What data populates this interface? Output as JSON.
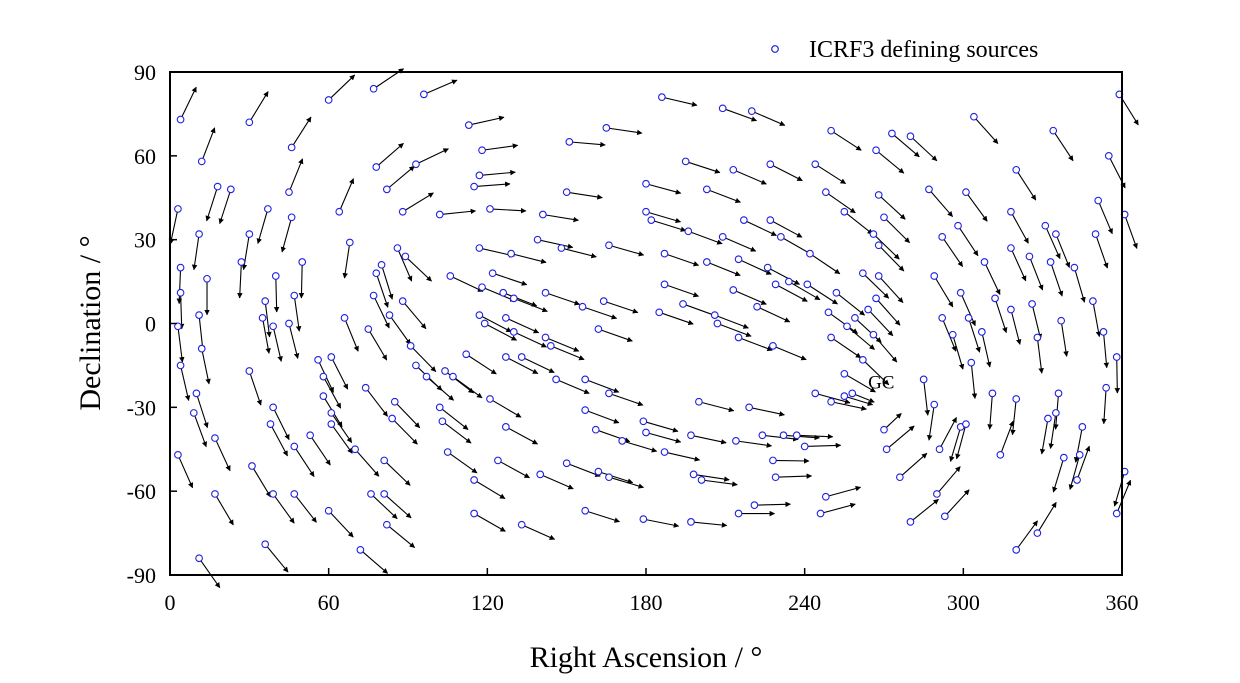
{
  "chart_data": {
    "type": "scatter",
    "xlabel": "Right Ascension / °",
    "ylabel": "Declination / °",
    "xlim": [
      0,
      360
    ],
    "ylim": [
      -90,
      90
    ],
    "xticks": [
      0,
      60,
      120,
      180,
      240,
      300,
      360
    ],
    "yticks": [
      -90,
      -60,
      -30,
      0,
      30,
      60,
      90
    ],
    "grid": false,
    "legend_position": "top-right",
    "series": [
      {
        "name": "ICRF3 defining sources",
        "marker": "open-circle",
        "color": "#2020e0",
        "vector_field": {
          "description": "arrow at each source showing proper-motion direction",
          "convergence_point": [
            267,
            -29
          ],
          "divergence_point": [
            87,
            29
          ]
        },
        "points": [
          {
            "x": 77,
            "y": 84
          },
          {
            "x": 60,
            "y": 80
          },
          {
            "x": 96,
            "y": 82
          },
          {
            "x": 4,
            "y": 73
          },
          {
            "x": 30,
            "y": 72
          },
          {
            "x": 46,
            "y": 63
          },
          {
            "x": 113,
            "y": 71
          },
          {
            "x": 12,
            "y": 58
          },
          {
            "x": 18,
            "y": 49
          },
          {
            "x": 23,
            "y": 48
          },
          {
            "x": 45,
            "y": 47
          },
          {
            "x": 78,
            "y": 56
          },
          {
            "x": 82,
            "y": 48
          },
          {
            "x": 3,
            "y": 41
          },
          {
            "x": 37,
            "y": 41
          },
          {
            "x": 46,
            "y": 38
          },
          {
            "x": 64,
            "y": 40
          },
          {
            "x": 88,
            "y": 40
          },
          {
            "x": 102,
            "y": 39
          },
          {
            "x": 93,
            "y": 57
          },
          {
            "x": 11,
            "y": 32
          },
          {
            "x": 30,
            "y": 32
          },
          {
            "x": 68,
            "y": 29
          },
          {
            "x": 86,
            "y": 27
          },
          {
            "x": 89,
            "y": 24
          },
          {
            "x": 4,
            "y": 20
          },
          {
            "x": 14,
            "y": 16
          },
          {
            "x": 27,
            "y": 22
          },
          {
            "x": 40,
            "y": 17
          },
          {
            "x": 50,
            "y": 22
          },
          {
            "x": 78,
            "y": 18
          },
          {
            "x": 80,
            "y": 21
          },
          {
            "x": 4,
            "y": 11
          },
          {
            "x": 36,
            "y": 8
          },
          {
            "x": 47,
            "y": 10
          },
          {
            "x": 77,
            "y": 10
          },
          {
            "x": 88,
            "y": 8
          },
          {
            "x": 106,
            "y": 17
          },
          {
            "x": 11,
            "y": 3
          },
          {
            "x": 35,
            "y": 2
          },
          {
            "x": 39,
            "y": -1
          },
          {
            "x": 45,
            "y": 0
          },
          {
            "x": 66,
            "y": 2
          },
          {
            "x": 83,
            "y": 3
          },
          {
            "x": 3,
            "y": -1
          },
          {
            "x": 12,
            "y": -9
          },
          {
            "x": 4,
            "y": -15
          },
          {
            "x": 30,
            "y": -17
          },
          {
            "x": 56,
            "y": -13
          },
          {
            "x": 61,
            "y": -12
          },
          {
            "x": 75,
            "y": -2
          },
          {
            "x": 91,
            "y": -8
          },
          {
            "x": 93,
            "y": -15
          },
          {
            "x": 58,
            "y": -19
          },
          {
            "x": 10,
            "y": -25
          },
          {
            "x": 9,
            "y": -32
          },
          {
            "x": 39,
            "y": -30
          },
          {
            "x": 58,
            "y": -26
          },
          {
            "x": 61,
            "y": -32
          },
          {
            "x": 74,
            "y": -23
          },
          {
            "x": 85,
            "y": -28
          },
          {
            "x": 97,
            "y": -19
          },
          {
            "x": 102,
            "y": -30
          },
          {
            "x": 104,
            "y": -17
          },
          {
            "x": 107,
            "y": -19
          },
          {
            "x": 38,
            "y": -36
          },
          {
            "x": 53,
            "y": -40
          },
          {
            "x": 61,
            "y": -36
          },
          {
            "x": 84,
            "y": -34
          },
          {
            "x": 103,
            "y": -35
          },
          {
            "x": 17,
            "y": -41
          },
          {
            "x": 3,
            "y": -47
          },
          {
            "x": 47,
            "y": -44
          },
          {
            "x": 70,
            "y": -45
          },
          {
            "x": 81,
            "y": -49
          },
          {
            "x": 105,
            "y": -46
          },
          {
            "x": 31,
            "y": -51
          },
          {
            "x": 39,
            "y": -61
          },
          {
            "x": 47,
            "y": -61
          },
          {
            "x": 76,
            "y": -61
          },
          {
            "x": 81,
            "y": -61
          },
          {
            "x": 17,
            "y": -61
          },
          {
            "x": 60,
            "y": -67
          },
          {
            "x": 82,
            "y": -72
          },
          {
            "x": 36,
            "y": -79
          },
          {
            "x": 72,
            "y": -81
          },
          {
            "x": 11,
            "y": -84
          },
          {
            "x": 115,
            "y": -56
          },
          {
            "x": 115,
            "y": -68
          },
          {
            "x": 124,
            "y": -49
          },
          {
            "x": 121,
            "y": -27
          },
          {
            "x": 127,
            "y": -37
          },
          {
            "x": 133,
            "y": -72
          },
          {
            "x": 140,
            "y": -54
          },
          {
            "x": 150,
            "y": -50
          },
          {
            "x": 157,
            "y": -67
          },
          {
            "x": 118,
            "y": 62
          },
          {
            "x": 117,
            "y": 53
          },
          {
            "x": 115,
            "y": 49
          },
          {
            "x": 121,
            "y": 41
          },
          {
            "x": 151,
            "y": 65
          },
          {
            "x": 165,
            "y": 70
          },
          {
            "x": 141,
            "y": 39
          },
          {
            "x": 150,
            "y": 47
          },
          {
            "x": 117,
            "y": 27
          },
          {
            "x": 139,
            "y": 30
          },
          {
            "x": 148,
            "y": 27
          },
          {
            "x": 129,
            "y": 25
          },
          {
            "x": 122,
            "y": 18
          },
          {
            "x": 118,
            "y": 13
          },
          {
            "x": 126,
            "y": 11
          },
          {
            "x": 130,
            "y": 9
          },
          {
            "x": 142,
            "y": 11
          },
          {
            "x": 156,
            "y": 6
          },
          {
            "x": 164,
            "y": 8
          },
          {
            "x": 166,
            "y": 28
          },
          {
            "x": 117,
            "y": 3
          },
          {
            "x": 119,
            "y": 0
          },
          {
            "x": 127,
            "y": 2
          },
          {
            "x": 130,
            "y": -3
          },
          {
            "x": 142,
            "y": -5
          },
          {
            "x": 144,
            "y": -8
          },
          {
            "x": 162,
            "y": -2
          },
          {
            "x": 112,
            "y": -11
          },
          {
            "x": 127,
            "y": -12
          },
          {
            "x": 133,
            "y": -12
          },
          {
            "x": 146,
            "y": -20
          },
          {
            "x": 157,
            "y": -20
          },
          {
            "x": 157,
            "y": -31
          },
          {
            "x": 161,
            "y": -38
          },
          {
            "x": 166,
            "y": -25
          },
          {
            "x": 171,
            "y": -42
          },
          {
            "x": 179,
            "y": -35
          },
          {
            "x": 180,
            "y": -39
          },
          {
            "x": 162,
            "y": -53
          },
          {
            "x": 166,
            "y": -55
          },
          {
            "x": 179,
            "y": -70
          },
          {
            "x": 197,
            "y": -71
          },
          {
            "x": 187,
            "y": -46
          },
          {
            "x": 198,
            "y": -54
          },
          {
            "x": 201,
            "y": -56
          },
          {
            "x": 197,
            "y": -40
          },
          {
            "x": 215,
            "y": -68
          },
          {
            "x": 221,
            "y": -65
          },
          {
            "x": 214,
            "y": -42
          },
          {
            "x": 224,
            "y": -40
          },
          {
            "x": 200,
            "y": -28
          },
          {
            "x": 219,
            "y": -30
          },
          {
            "x": 228,
            "y": -49
          },
          {
            "x": 229,
            "y": -55
          },
          {
            "x": 186,
            "y": 81
          },
          {
            "x": 209,
            "y": 77
          },
          {
            "x": 220,
            "y": 76
          },
          {
            "x": 195,
            "y": 58
          },
          {
            "x": 213,
            "y": 55
          },
          {
            "x": 227,
            "y": 57
          },
          {
            "x": 180,
            "y": 50
          },
          {
            "x": 180,
            "y": 40
          },
          {
            "x": 203,
            "y": 48
          },
          {
            "x": 217,
            "y": 37
          },
          {
            "x": 182,
            "y": 37
          },
          {
            "x": 196,
            "y": 33
          },
          {
            "x": 209,
            "y": 31
          },
          {
            "x": 227,
            "y": 37
          },
          {
            "x": 231,
            "y": 31
          },
          {
            "x": 244,
            "y": 57
          },
          {
            "x": 250,
            "y": 69
          },
          {
            "x": 248,
            "y": 47
          },
          {
            "x": 255,
            "y": 40
          },
          {
            "x": 187,
            "y": 25
          },
          {
            "x": 203,
            "y": 22
          },
          {
            "x": 215,
            "y": 23
          },
          {
            "x": 226,
            "y": 20
          },
          {
            "x": 234,
            "y": 15
          },
          {
            "x": 242,
            "y": 25
          },
          {
            "x": 187,
            "y": 14
          },
          {
            "x": 194,
            "y": 7
          },
          {
            "x": 206,
            "y": 3
          },
          {
            "x": 213,
            "y": 12
          },
          {
            "x": 222,
            "y": 6
          },
          {
            "x": 229,
            "y": 14
          },
          {
            "x": 241,
            "y": 14
          },
          {
            "x": 249,
            "y": 4
          },
          {
            "x": 185,
            "y": 4
          },
          {
            "x": 207,
            "y": 0
          },
          {
            "x": 215,
            "y": -5
          },
          {
            "x": 228,
            "y": -8
          },
          {
            "x": 250,
            "y": -5
          },
          {
            "x": 262,
            "y": 18
          },
          {
            "x": 266,
            "y": 32
          },
          {
            "x": 267,
            "y": 62
          },
          {
            "x": 273,
            "y": 68
          },
          {
            "x": 280,
            "y": 67
          },
          {
            "x": 268,
            "y": 46
          },
          {
            "x": 270,
            "y": 38
          },
          {
            "x": 268,
            "y": 28
          },
          {
            "x": 268,
            "y": 17
          },
          {
            "x": 267,
            "y": 9
          },
          {
            "x": 264,
            "y": 5
          },
          {
            "x": 259,
            "y": 2
          },
          {
            "x": 252,
            "y": 11
          },
          {
            "x": 256,
            "y": -1
          },
          {
            "x": 266,
            "y": -4
          },
          {
            "x": 262,
            "y": -13
          },
          {
            "x": 255,
            "y": -18
          },
          {
            "x": 255,
            "y": -26
          },
          {
            "x": 244,
            "y": -25
          },
          {
            "x": 250,
            "y": -28
          },
          {
            "x": 258,
            "y": -25
          },
          {
            "x": 270,
            "y": -38
          },
          {
            "x": 276,
            "y": -55
          },
          {
            "x": 280,
            "y": -71
          },
          {
            "x": 271,
            "y": -45
          },
          {
            "x": 246,
            "y": -68
          },
          {
            "x": 248,
            "y": -62
          },
          {
            "x": 240,
            "y": -44
          },
          {
            "x": 232,
            "y": -40
          },
          {
            "x": 237,
            "y": -40
          },
          {
            "x": 304,
            "y": 74
          },
          {
            "x": 334,
            "y": 69
          },
          {
            "x": 359,
            "y": 82
          },
          {
            "x": 287,
            "y": 48
          },
          {
            "x": 301,
            "y": 47
          },
          {
            "x": 320,
            "y": 55
          },
          {
            "x": 355,
            "y": 60
          },
          {
            "x": 361,
            "y": 39
          },
          {
            "x": 351,
            "y": 44
          },
          {
            "x": 318,
            "y": 40
          },
          {
            "x": 292,
            "y": 31
          },
          {
            "x": 298,
            "y": 35
          },
          {
            "x": 308,
            "y": 22
          },
          {
            "x": 331,
            "y": 35
          },
          {
            "x": 335,
            "y": 32
          },
          {
            "x": 350,
            "y": 32
          },
          {
            "x": 289,
            "y": 17
          },
          {
            "x": 299,
            "y": 11
          },
          {
            "x": 318,
            "y": 27
          },
          {
            "x": 325,
            "y": 24
          },
          {
            "x": 333,
            "y": 22
          },
          {
            "x": 342,
            "y": 20
          },
          {
            "x": 292,
            "y": 2
          },
          {
            "x": 302,
            "y": 2
          },
          {
            "x": 312,
            "y": 9
          },
          {
            "x": 318,
            "y": 5
          },
          {
            "x": 326,
            "y": 7
          },
          {
            "x": 337,
            "y": 1
          },
          {
            "x": 349,
            "y": 8
          },
          {
            "x": 296,
            "y": -4
          },
          {
            "x": 307,
            "y": -3
          },
          {
            "x": 328,
            "y": -5
          },
          {
            "x": 353,
            "y": -3
          },
          {
            "x": 358,
            "y": -12
          },
          {
            "x": 285,
            "y": -20
          },
          {
            "x": 303,
            "y": -14
          },
          {
            "x": 311,
            "y": -25
          },
          {
            "x": 320,
            "y": -27
          },
          {
            "x": 336,
            "y": -25
          },
          {
            "x": 354,
            "y": -23
          },
          {
            "x": 289,
            "y": -29
          },
          {
            "x": 299,
            "y": -37
          },
          {
            "x": 301,
            "y": -36
          },
          {
            "x": 314,
            "y": -47
          },
          {
            "x": 332,
            "y": -34
          },
          {
            "x": 335,
            "y": -32
          },
          {
            "x": 345,
            "y": -37
          },
          {
            "x": 344,
            "y": -47
          },
          {
            "x": 338,
            "y": -48
          },
          {
            "x": 343,
            "y": -56
          },
          {
            "x": 361,
            "y": -53
          },
          {
            "x": 291,
            "y": -45
          },
          {
            "x": 290,
            "y": -61
          },
          {
            "x": 293,
            "y": -69
          },
          {
            "x": 320,
            "y": -81
          },
          {
            "x": 328,
            "y": -75
          },
          {
            "x": 358,
            "y": -68
          }
        ]
      }
    ],
    "annotations": [
      {
        "text": "GC",
        "x": 267,
        "y": -29
      }
    ]
  }
}
